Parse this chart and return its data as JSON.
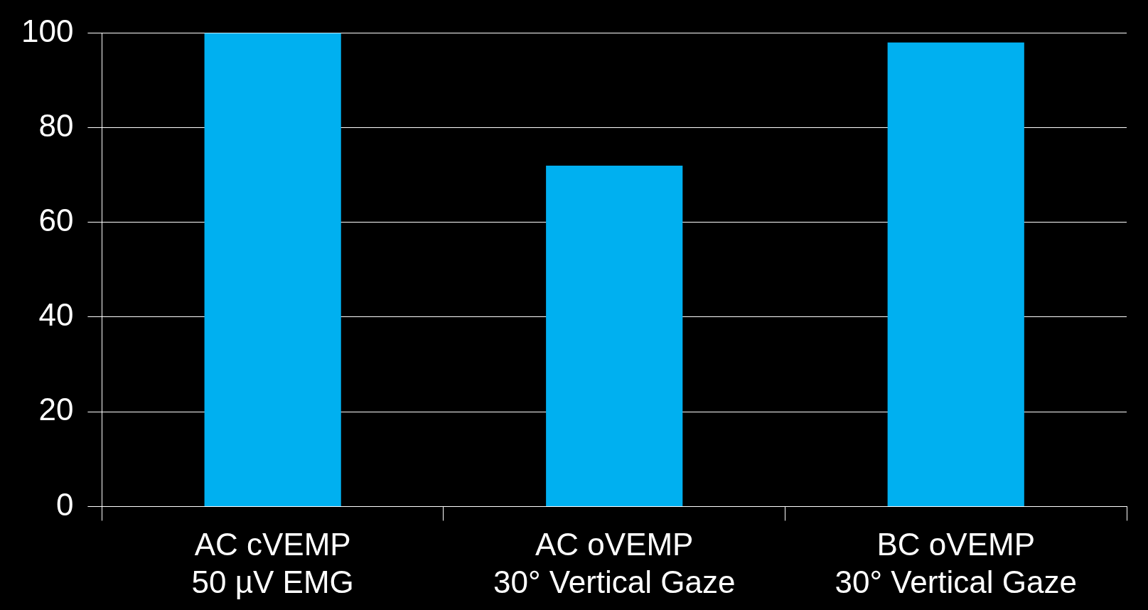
{
  "chart_data": {
    "type": "bar",
    "categories": [
      "AC cVEMP\n50 µV EMG",
      "AC oVEMP\n30° Vertical Gaze",
      "BC oVEMP\n30° Vertical Gaze"
    ],
    "values": [
      100,
      72,
      98
    ],
    "color": "#00b0f0",
    "ylim": [
      0,
      100
    ],
    "yticks": [
      0,
      20,
      40,
      60,
      80,
      100
    ],
    "grid": "y",
    "legend": false
  }
}
